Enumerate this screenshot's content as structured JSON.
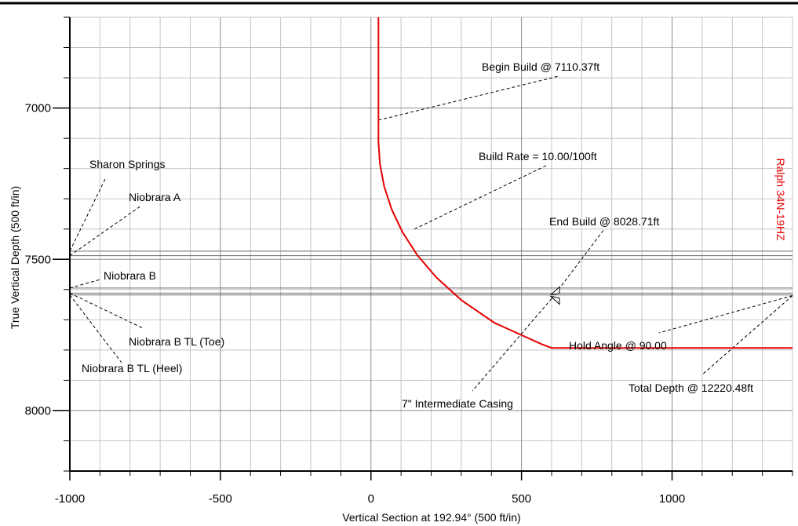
{
  "chart_data": {
    "type": "line",
    "title": "",
    "xlabel": "Vertical Section at 192.94° (500 ft/in)",
    "ylabel": "True Vertical Depth (500 ft/in)",
    "xlim": [
      -1000,
      1400
    ],
    "ylim": [
      8200,
      6700
    ],
    "y_inverted": true,
    "grid": true,
    "x_ticks": [
      -1000,
      -500,
      0,
      500,
      1000
    ],
    "x_tick_labels": [
      "-1000",
      "-500",
      "0",
      "500",
      "1000"
    ],
    "y_ticks": [
      7000,
      7500,
      8000
    ],
    "y_tick_labels": [
      "7000",
      "7500",
      "8000"
    ],
    "series": [
      {
        "name": "Ralph 34N-19HZ",
        "color": "#e60000",
        "points": [
          [
            25,
            6700
          ],
          [
            25,
            6800
          ],
          [
            25,
            6900
          ],
          [
            25,
            7000
          ],
          [
            25,
            7110.37
          ],
          [
            29.8,
            7185
          ],
          [
            44.2,
            7260
          ],
          [
            68.8,
            7335
          ],
          [
            104.6,
            7410
          ],
          [
            153.2,
            7485
          ],
          [
            217.1,
            7560
          ],
          [
            300.3,
            7635
          ],
          [
            410.1,
            7710
          ],
          [
            565.5,
            7780
          ],
          [
            600,
            7793
          ],
          [
            800,
            7793
          ],
          [
            1000,
            7793
          ],
          [
            1200,
            7793
          ],
          [
            1400,
            7793
          ]
        ]
      }
    ],
    "formation_tops": [
      {
        "name": "Sharon Springs",
        "tvd": 7473
      },
      {
        "name": "Niobrara A",
        "tvd": 7488
      },
      {
        "name": "Niobrara B",
        "tvd": 7595
      },
      {
        "name": "Niobrara B TL (Toe)",
        "tvd": 7612
      },
      {
        "name": "Niobrara B TL (Heel)",
        "tvd": 7618
      }
    ],
    "annotations": [
      {
        "text": "Begin Build @ 7110.37ft",
        "x": 25,
        "tvd": 7040
      },
      {
        "text": "Build Rate = 10.00/100ft",
        "x": 145,
        "tvd": 7400
      },
      {
        "text": "End Build @ 8028.71ft",
        "x": 600,
        "tvd": 7630
      },
      {
        "text": "7\" Intermediate Casing",
        "x": 600,
        "tvd": 7630
      },
      {
        "text": "Hold Angle @ 90.00",
        "x": 1400,
        "tvd": 7620
      },
      {
        "text": "Total Depth @ 12220.48ft",
        "x": 1400,
        "tvd": 7620
      }
    ],
    "casing_marker": {
      "name": "7\" Intermediate Casing",
      "x": 600,
      "tvd": 7620
    }
  }
}
